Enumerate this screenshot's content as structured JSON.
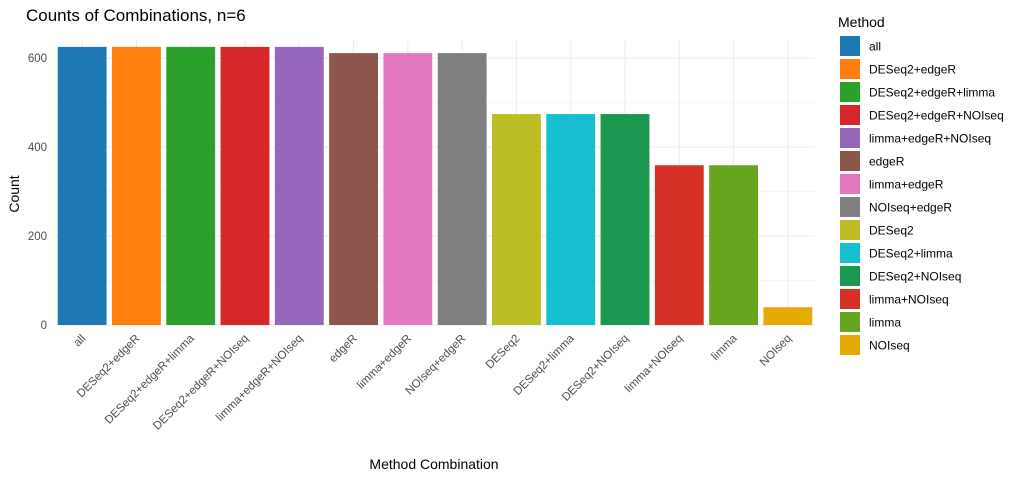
{
  "chart_data": {
    "type": "bar",
    "title": "Counts of Combinations, n=6",
    "xlabel": "Method Combination",
    "ylabel": "Count",
    "ylim": [
      0,
      640
    ],
    "yticks": [
      0,
      200,
      400,
      600
    ],
    "grid": true,
    "legend_title": "Method",
    "legend_placement": "right",
    "categories": [
      "all",
      "DESeq2+edgeR",
      "DESeq2+edgeR+limma",
      "DESeq2+edgeR+NOIseq",
      "limma+edgeR+NOIseq",
      "edgeR",
      "limma+edgeR",
      "NOIseq+edgeR",
      "DESeq2",
      "DESeq2+limma",
      "DESeq2+NOIseq",
      "limma+NOIseq",
      "limma",
      "NOIseq"
    ],
    "values": [
      625,
      625,
      625,
      625,
      625,
      611,
      611,
      611,
      474,
      474,
      474,
      359,
      359,
      40
    ],
    "colors": [
      "#1f77b4",
      "#ff7f0e",
      "#2ca02c",
      "#d62728",
      "#9467bd",
      "#8c564b",
      "#e377c2",
      "#7f7f7f",
      "#bcbd22",
      "#17becf",
      "#1a9850",
      "#d73027",
      "#66a61e",
      "#e6ab02"
    ]
  }
}
